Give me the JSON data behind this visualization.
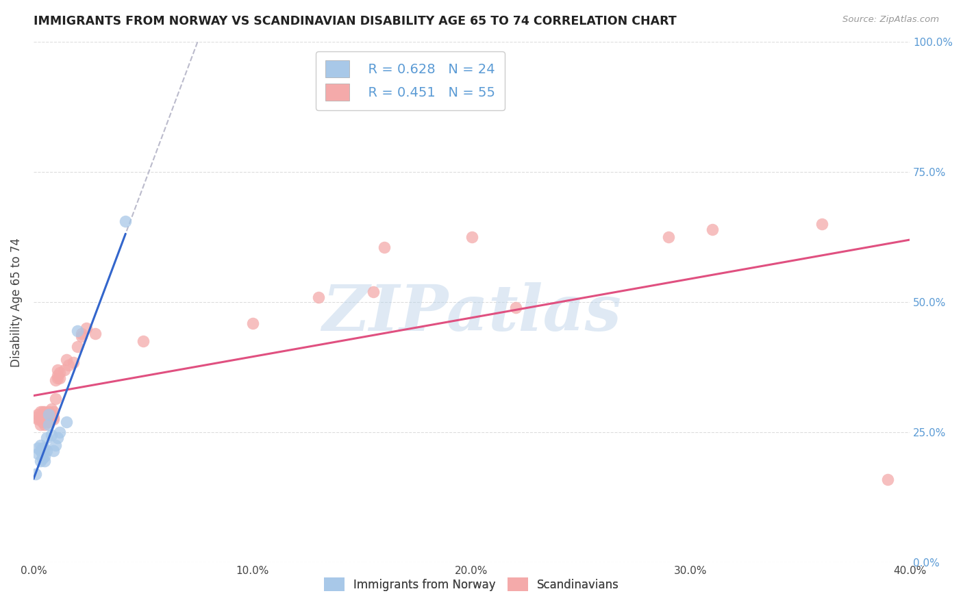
{
  "title": "IMMIGRANTS FROM NORWAY VS SCANDINAVIAN DISABILITY AGE 65 TO 74 CORRELATION CHART",
  "source": "Source: ZipAtlas.com",
  "ylabel": "Disability Age 65 to 74",
  "xlim": [
    0.0,
    0.4
  ],
  "ylim": [
    0.0,
    1.0
  ],
  "watermark_text": "ZIPatlas",
  "blue_color": "#A8C8E8",
  "blue_line_color": "#3366CC",
  "pink_color": "#F4AAAA",
  "pink_line_color": "#E05080",
  "gray_dash_color": "#BBBBCC",
  "background_color": "#FFFFFF",
  "grid_color": "#DDDDDD",
  "norway_R": 0.628,
  "norway_N": 24,
  "scand_R": 0.451,
  "scand_N": 55,
  "norway_x": [
    0.001,
    0.002,
    0.002,
    0.003,
    0.003,
    0.003,
    0.004,
    0.004,
    0.004,
    0.005,
    0.005,
    0.005,
    0.006,
    0.006,
    0.007,
    0.007,
    0.008,
    0.009,
    0.01,
    0.011,
    0.012,
    0.015,
    0.02,
    0.042
  ],
  "norway_y": [
    0.17,
    0.21,
    0.22,
    0.195,
    0.215,
    0.225,
    0.2,
    0.22,
    0.21,
    0.195,
    0.205,
    0.22,
    0.215,
    0.24,
    0.285,
    0.265,
    0.245,
    0.215,
    0.225,
    0.24,
    0.25,
    0.27,
    0.445,
    0.655
  ],
  "scand_x": [
    0.001,
    0.002,
    0.002,
    0.003,
    0.003,
    0.003,
    0.004,
    0.004,
    0.004,
    0.004,
    0.005,
    0.005,
    0.005,
    0.005,
    0.005,
    0.006,
    0.006,
    0.006,
    0.006,
    0.007,
    0.007,
    0.007,
    0.008,
    0.008,
    0.008,
    0.009,
    0.009,
    0.009,
    0.01,
    0.01,
    0.011,
    0.011,
    0.011,
    0.012,
    0.012,
    0.014,
    0.015,
    0.016,
    0.018,
    0.02,
    0.022,
    0.022,
    0.024,
    0.028,
    0.05,
    0.1,
    0.13,
    0.155,
    0.16,
    0.2,
    0.22,
    0.29,
    0.31,
    0.36,
    0.39
  ],
  "scand_y": [
    0.28,
    0.275,
    0.285,
    0.265,
    0.275,
    0.29,
    0.275,
    0.28,
    0.27,
    0.29,
    0.265,
    0.275,
    0.28,
    0.285,
    0.29,
    0.27,
    0.275,
    0.285,
    0.28,
    0.27,
    0.28,
    0.29,
    0.275,
    0.285,
    0.295,
    0.275,
    0.28,
    0.29,
    0.315,
    0.35,
    0.355,
    0.36,
    0.37,
    0.355,
    0.365,
    0.37,
    0.39,
    0.38,
    0.385,
    0.415,
    0.435,
    0.44,
    0.45,
    0.44,
    0.425,
    0.46,
    0.51,
    0.52,
    0.605,
    0.625,
    0.49,
    0.625,
    0.64,
    0.65,
    0.16
  ],
  "blue_line_x_end": 0.042,
  "pink_line_intercept": 0.25,
  "pink_line_slope": 1.0
}
